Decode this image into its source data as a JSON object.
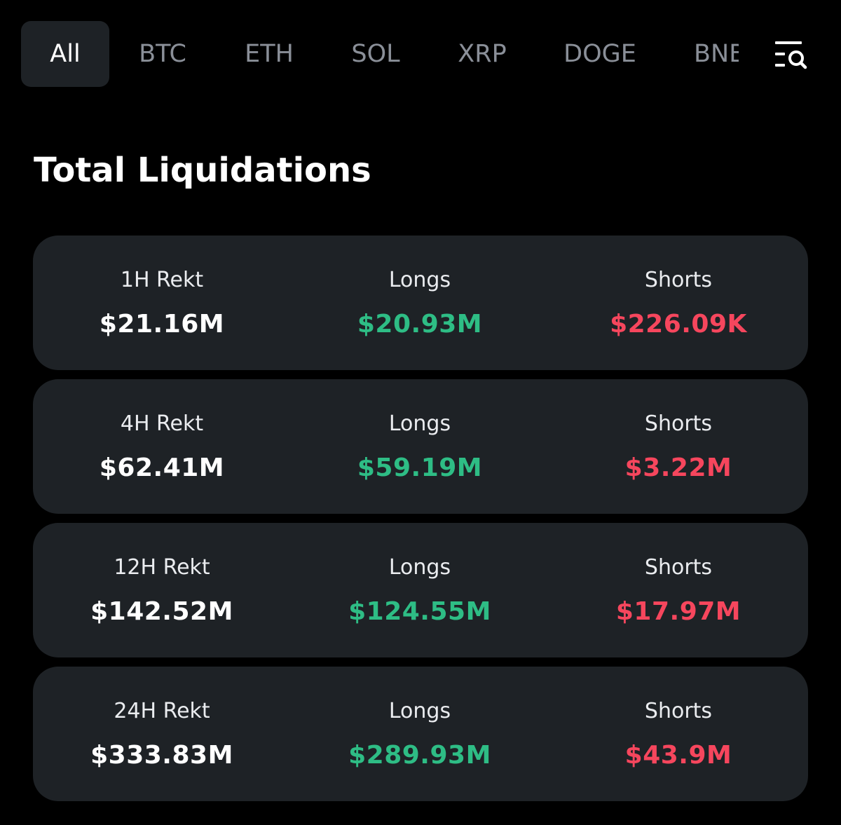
{
  "tabs": [
    {
      "label": "All",
      "active": true
    },
    {
      "label": "BTC",
      "active": false
    },
    {
      "label": "ETH",
      "active": false
    },
    {
      "label": "SOL",
      "active": false
    },
    {
      "label": "XRP",
      "active": false
    },
    {
      "label": "DOGE",
      "active": false
    },
    {
      "label": "BNB",
      "active": false
    }
  ],
  "filter_icon": "list-search-icon",
  "title": "Total Liquidations",
  "colors": {
    "background": "#000000",
    "card": "#1e2226",
    "long": "#2ebd85",
    "short": "#f6465d",
    "inactive_tab": "#8a8f98"
  },
  "rows": [
    {
      "period_label": "1H Rekt",
      "total": "$21.16M",
      "longs_label": "Longs",
      "longs": "$20.93M",
      "shorts_label": "Shorts",
      "shorts": "$226.09K"
    },
    {
      "period_label": "4H Rekt",
      "total": "$62.41M",
      "longs_label": "Longs",
      "longs": "$59.19M",
      "shorts_label": "Shorts",
      "shorts": "$3.22M"
    },
    {
      "period_label": "12H Rekt",
      "total": "$142.52M",
      "longs_label": "Longs",
      "longs": "$124.55M",
      "shorts_label": "Shorts",
      "shorts": "$17.97M"
    },
    {
      "period_label": "24H Rekt",
      "total": "$333.83M",
      "longs_label": "Longs",
      "longs": "$289.93M",
      "shorts_label": "Shorts",
      "shorts": "$43.9M"
    }
  ]
}
